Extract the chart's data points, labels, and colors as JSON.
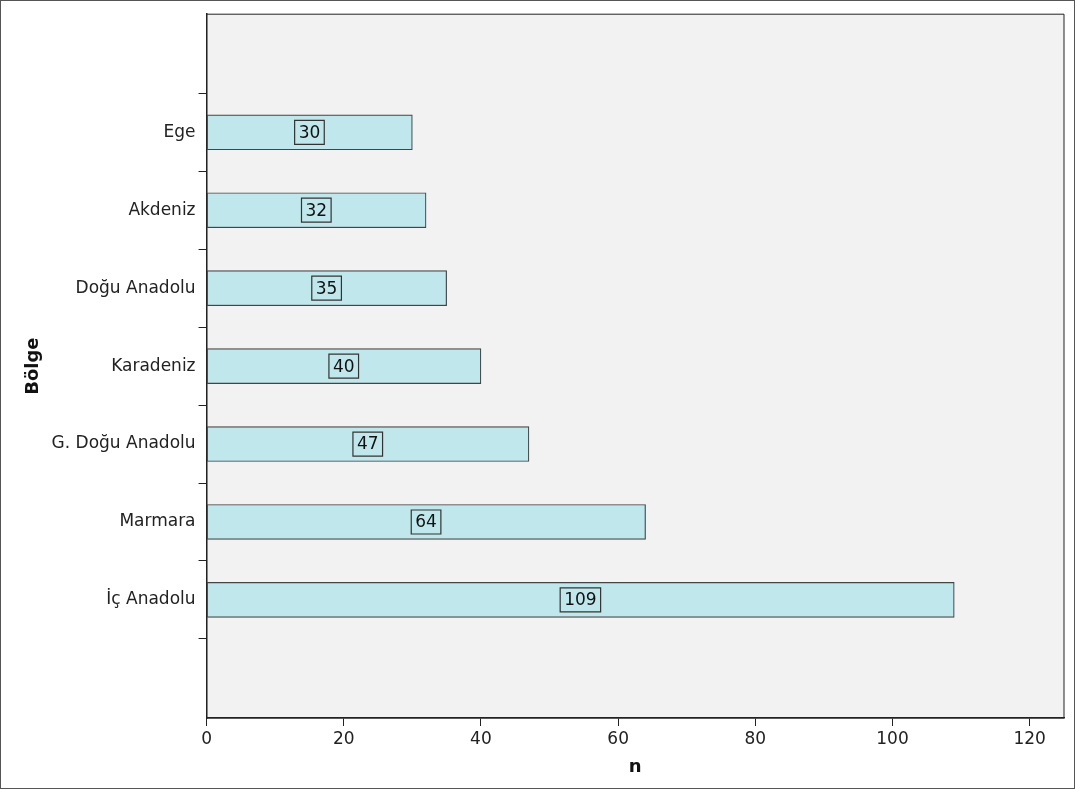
{
  "chart_data": {
    "type": "bar",
    "orientation": "horizontal",
    "xlabel": "n",
    "ylabel": "Bölge",
    "categories": [
      "Ege",
      "Akdeniz",
      "Doğu Anadolu",
      "Karadeniz",
      "G. Doğu Anadolu",
      "Marmara",
      "İç Anadolu"
    ],
    "values": [
      30,
      32,
      35,
      40,
      47,
      64,
      109
    ],
    "color": "#c0e8ec",
    "xlim": [
      0,
      125
    ],
    "xticks": [
      0,
      20,
      40,
      60,
      80,
      100,
      120
    ],
    "grid": false,
    "legend": false,
    "data_labels": true
  }
}
